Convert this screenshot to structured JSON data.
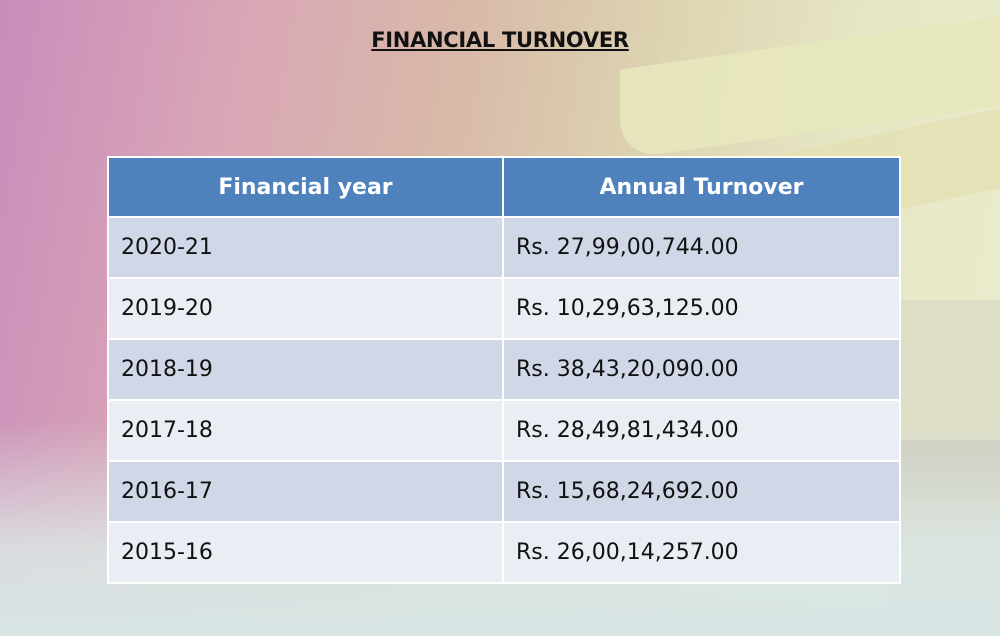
{
  "title": "FINANCIAL TURNOVER",
  "table": {
    "headers": [
      "Financial year",
      "Annual Turnover"
    ],
    "rows": [
      {
        "year": "2020-21",
        "turnover": "Rs. 27,99,00,744.00"
      },
      {
        "year": "2019-20",
        "turnover": "Rs. 10,29,63,125.00"
      },
      {
        "year": "2018-19",
        "turnover": "Rs. 38,43,20,090.00"
      },
      {
        "year": "2017-18",
        "turnover": "Rs. 28,49,81,434.00"
      },
      {
        "year": "2016-17",
        "turnover": "Rs. 15,68,24,692.00"
      },
      {
        "year": "2015-16",
        "turnover": "Rs. 26,00,14,257.00"
      }
    ]
  },
  "colors": {
    "header_bg": "#4f81bd",
    "row_band_1": "#d0d8e8",
    "row_band_2": "#e9edf4"
  }
}
